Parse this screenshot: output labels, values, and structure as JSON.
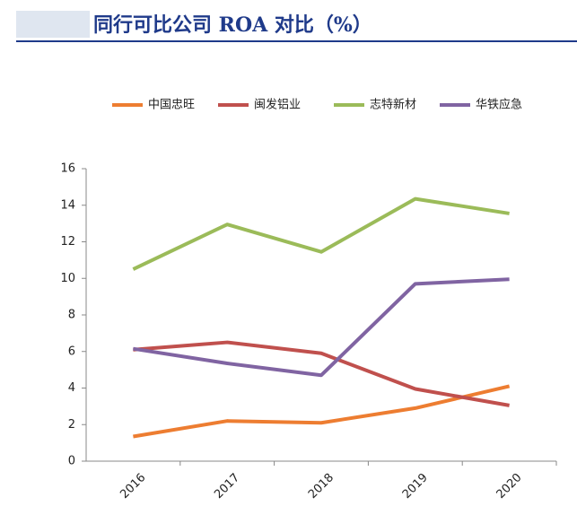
{
  "chart_data": {
    "type": "line",
    "title": "同行可比公司 ROA 对比（%）",
    "categories": [
      "2016",
      "2017",
      "2018",
      "2019",
      "2020"
    ],
    "series": [
      {
        "name": "中国忠旺",
        "color": "#ed7d31",
        "values": [
          1.35,
          2.2,
          2.1,
          2.9,
          4.1
        ]
      },
      {
        "name": "闽发铝业",
        "color": "#c0504d",
        "values": [
          6.1,
          6.5,
          5.9,
          3.95,
          3.05
        ]
      },
      {
        "name": "志特新材",
        "color": "#9bbb59",
        "values": [
          10.5,
          12.95,
          11.45,
          14.35,
          13.55
        ]
      },
      {
        "name": "华铁应急",
        "color": "#8064a2",
        "values": [
          6.15,
          5.35,
          4.7,
          9.7,
          9.95
        ]
      }
    ],
    "ylim": [
      0,
      16
    ],
    "yticks": [
      0,
      2,
      4,
      6,
      8,
      10,
      12,
      14,
      16
    ]
  }
}
